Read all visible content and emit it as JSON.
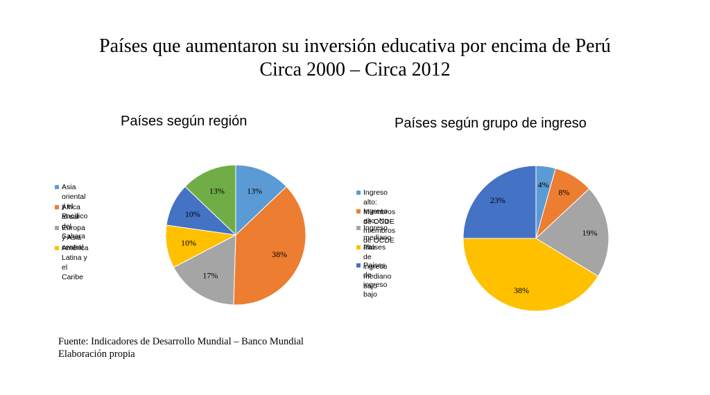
{
  "title_line1": "Países que aumentaron su inversión educativa por encima de Perú",
  "title_line2": "Circa 2000 – Circa 2012",
  "source_line1": "Fuente: Indicadores de Desarrollo Mundial – Banco Mundial",
  "source_line2": "Elaboración propia",
  "chart_data": [
    {
      "type": "pie",
      "title": "Países según región",
      "legend_position": "left",
      "slices": [
        {
          "label": "Asia oriental y el Pacífico",
          "legend_text": "Asia oriental y el\nPacífico",
          "value": 13,
          "data_label": "13%",
          "color": "#5B9BD5"
        },
        {
          "label": "África al sur del Sahara",
          "legend_text": "África al sur del\nSahara",
          "value": 38,
          "data_label": "38%",
          "color": "#ED7D31"
        },
        {
          "label": "Europa y Asia central",
          "legend_text": "Europa y Asia central",
          "value": 17,
          "data_label": "17%",
          "color": "#A5A5A5"
        },
        {
          "label": "América Latina y el Caribe",
          "legend_text": "América Latina y el\nCaribe",
          "value": 10,
          "data_label": "10%",
          "color": "#FFC000"
        },
        {
          "label": "",
          "legend_text": "",
          "value": 10,
          "data_label": "10%",
          "color": "#4472C4"
        },
        {
          "label": "",
          "legend_text": "",
          "value": 13,
          "data_label": "13%",
          "color": "#70AD47"
        }
      ]
    },
    {
      "type": "pie",
      "title": "Países según grupo de ingreso",
      "legend_position": "left",
      "slices": [
        {
          "label": "Ingreso alto: Miembros de OCDE",
          "legend_text": "Ingreso alto:\nMiembros de OCDE",
          "value": 4,
          "data_label": "4%",
          "color": "#5B9BD5"
        },
        {
          "label": "Ingreso alto: No miembros de OCDE",
          "legend_text": "Ingreso alto: No\nmiembros de OCDE",
          "value": 8,
          "data_label": "8%",
          "color": "#ED7D31"
        },
        {
          "label": "Ingreso mediano alto",
          "legend_text": "Ingreso mediano alto",
          "value": 19,
          "data_label": "19%",
          "color": "#A5A5A5"
        },
        {
          "label": "Países de ingreso mediano bajo",
          "legend_text": "Países de ingreso\nmediano bajo",
          "value": 38,
          "data_label": "38%",
          "color": "#FFC000"
        },
        {
          "label": "Países de ingreso bajo",
          "legend_text": "Países de ingreso\nbajo",
          "value": 23,
          "data_label": "23%",
          "color": "#4472C4"
        }
      ]
    }
  ]
}
